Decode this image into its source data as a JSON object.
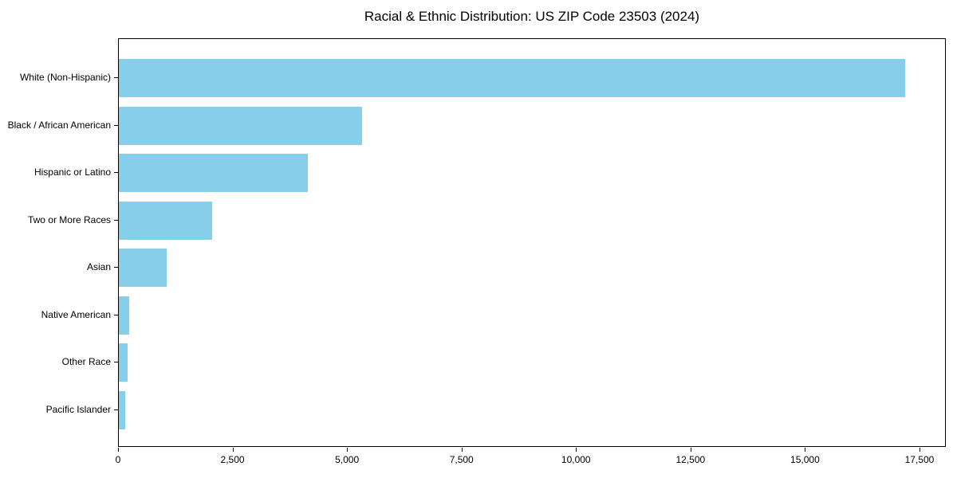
{
  "title": "Racial & Ethnic Distribution: US ZIP Code 23503 (2024)",
  "colors": {
    "bar": "#87CEEB",
    "axis": "#000000",
    "background": "#FFFFFF",
    "text": "#000000"
  },
  "chart_data": {
    "type": "bar",
    "orientation": "horizontal",
    "title": "Racial & Ethnic Distribution: US ZIP Code 23503 (2024)",
    "categories": [
      "White (Non-Hispanic)",
      "Black / African American",
      "Hispanic or Latino",
      "Two or More Races",
      "Asian",
      "Native American",
      "Other Race",
      "Pacific Islander"
    ],
    "values": [
      17200,
      5330,
      4140,
      2050,
      1045,
      225,
      185,
      140
    ],
    "xlabel": "",
    "ylabel": "",
    "xlim": [
      0,
      18075
    ],
    "xticks": [
      0,
      2500,
      5000,
      7500,
      10000,
      12500,
      15000,
      17500
    ],
    "xtick_labels": [
      "0",
      "2,500",
      "5,000",
      "7,500",
      "10,000",
      "12,500",
      "15,000",
      "17,500"
    ],
    "grid": false,
    "legend": null,
    "bar_color": "#87CEEB"
  }
}
